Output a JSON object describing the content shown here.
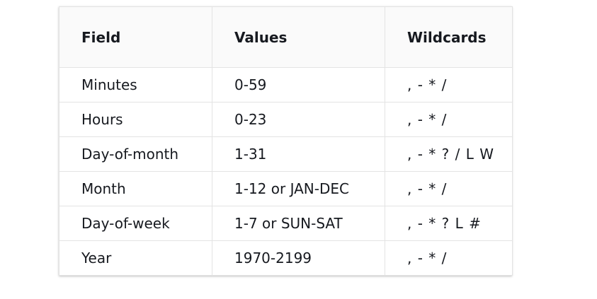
{
  "table": {
    "headers": [
      "Field",
      "Values",
      "Wildcards"
    ],
    "rows": [
      [
        "Minutes",
        "0-59",
        ", - * /"
      ],
      [
        "Hours",
        "0-23",
        ", - * /"
      ],
      [
        "Day-of-month",
        "1-31",
        ", - * ? / L W"
      ],
      [
        "Month",
        "1-12 or JAN-DEC",
        ", - * /"
      ],
      [
        "Day-of-week",
        "1-7 or SUN-SAT",
        ", - * ? L #"
      ],
      [
        "Year",
        "1970-2199",
        ", - * /"
      ]
    ]
  }
}
